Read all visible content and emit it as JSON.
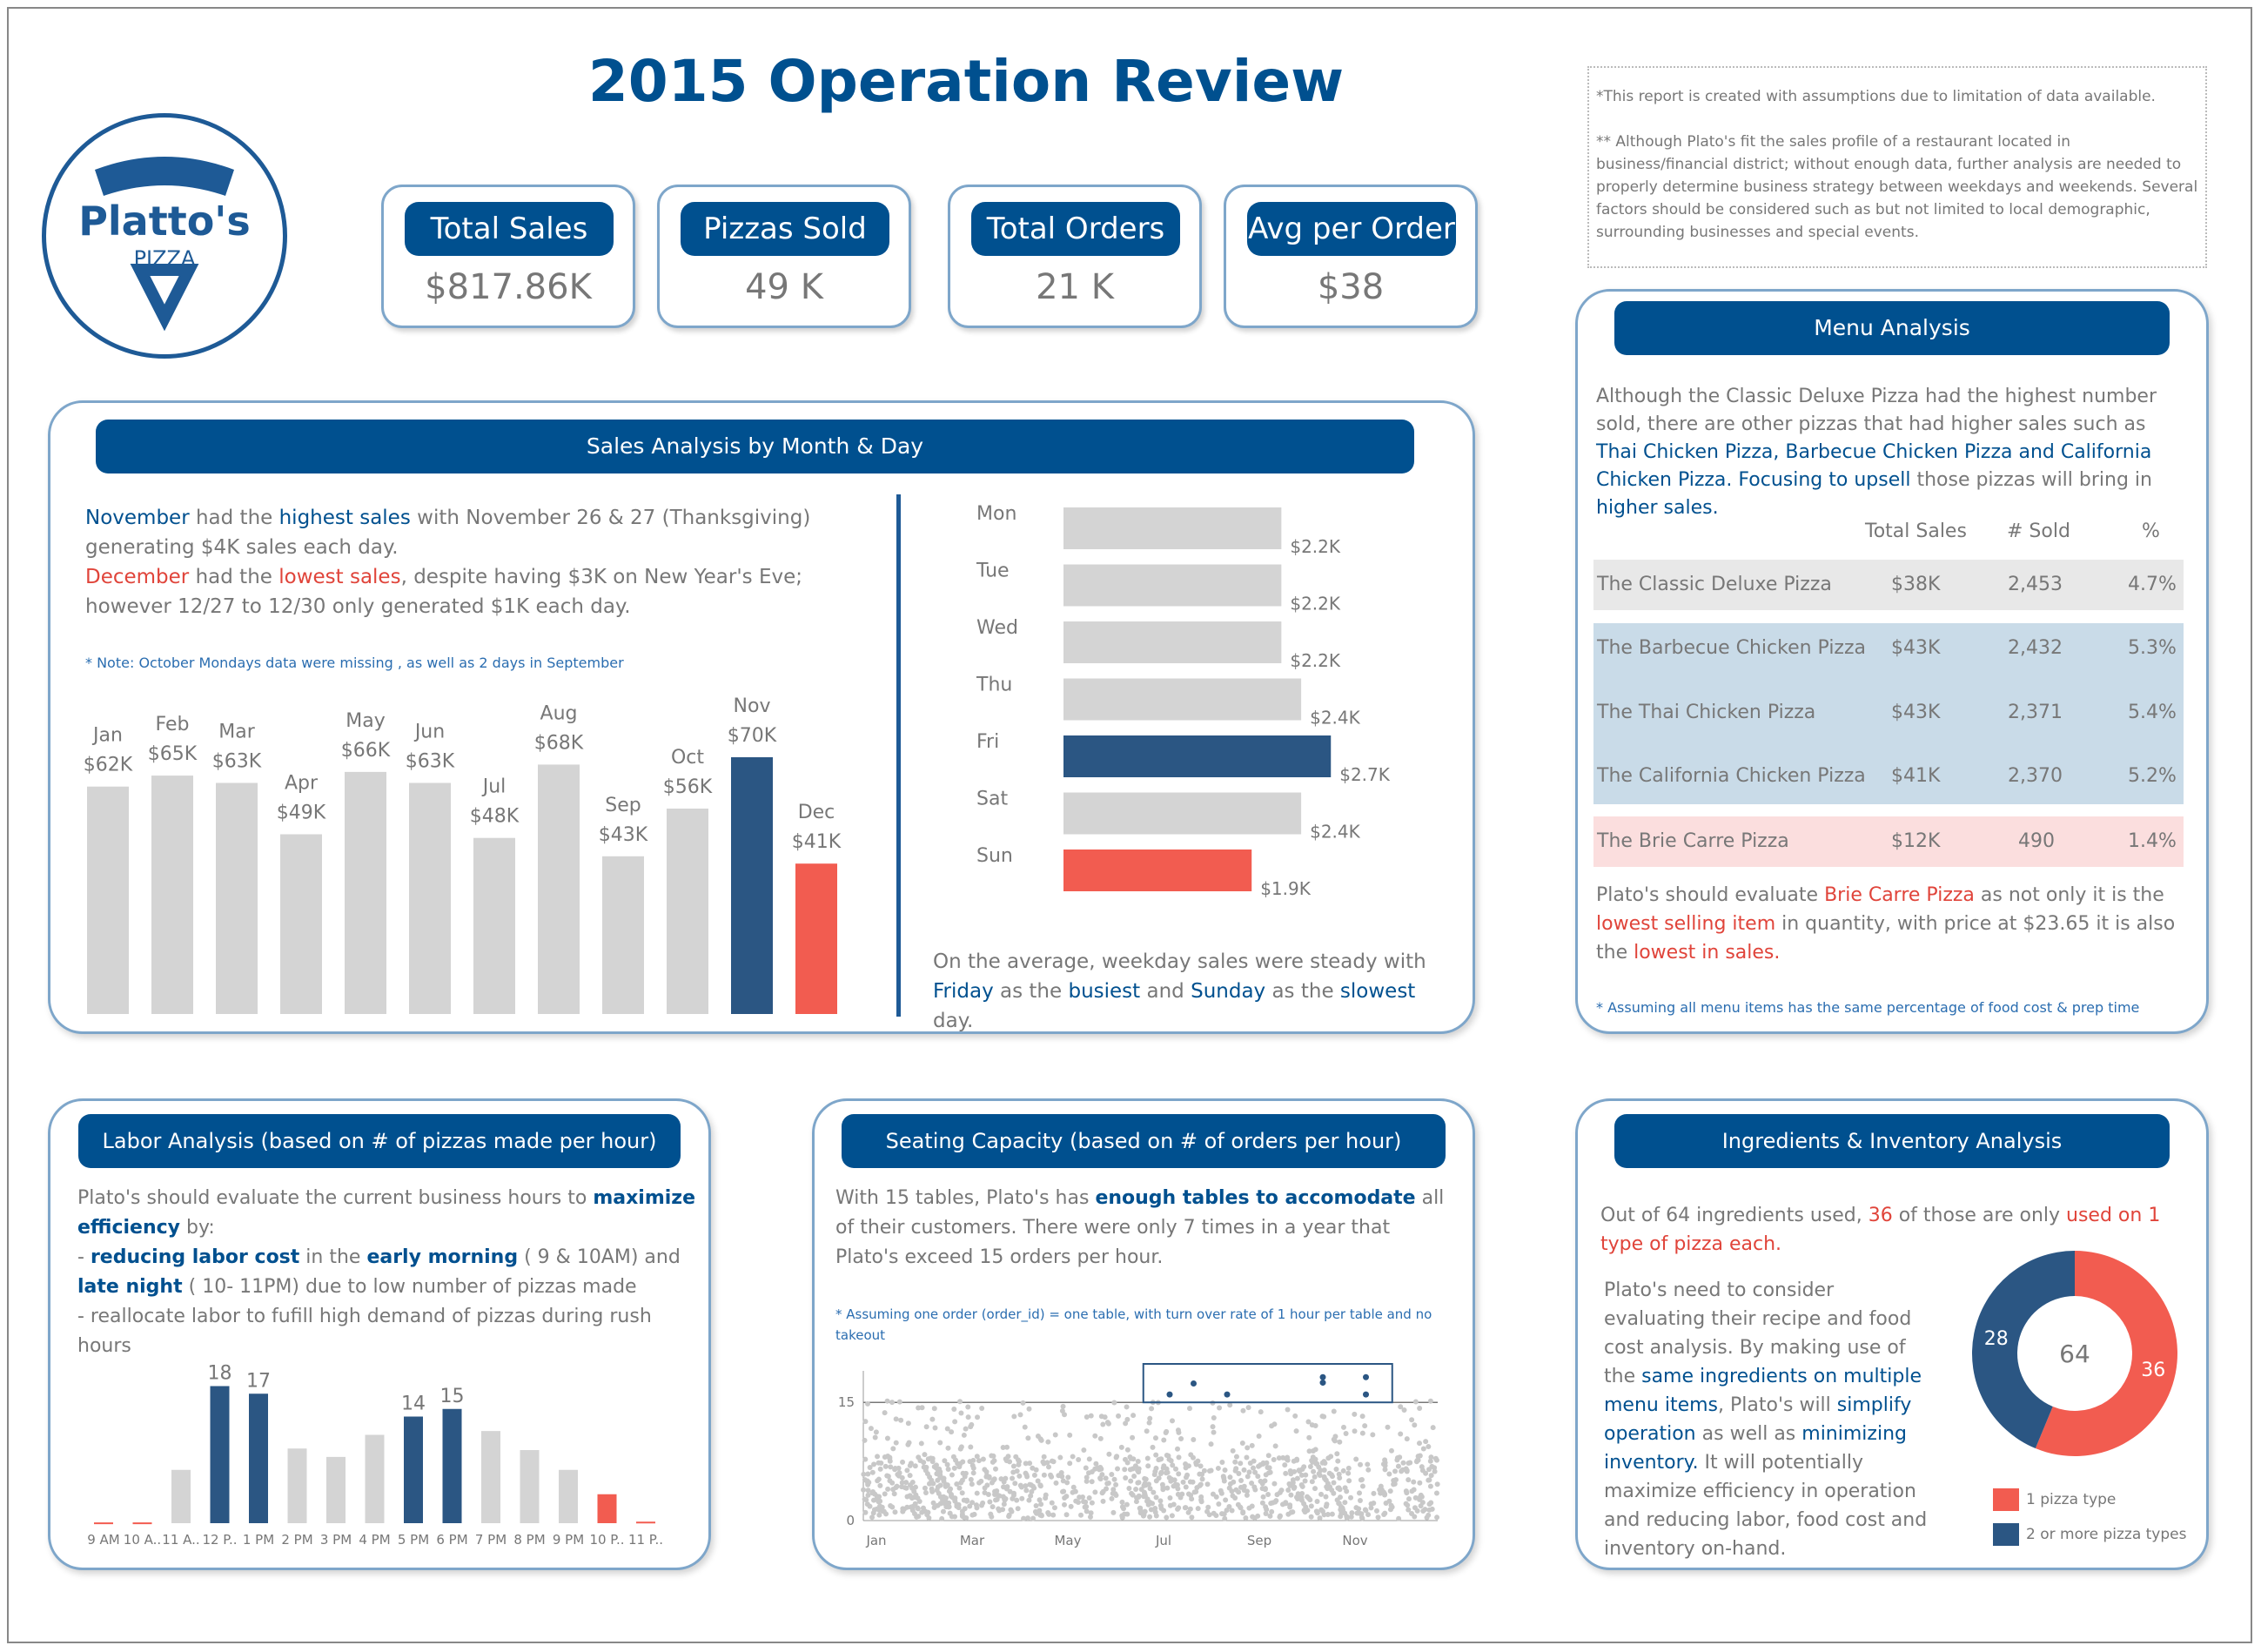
{
  "title": "2015 Operation Review",
  "logo": {
    "line1": "Platto's",
    "line2": "PIZZA"
  },
  "kpis": [
    {
      "label": "Total Sales",
      "value": "$817.86K"
    },
    {
      "label": "Pizzas Sold",
      "value": "49 K"
    },
    {
      "label": "Total Orders",
      "value": "21 K"
    },
    {
      "label": "Avg per Order",
      "value": "$38"
    }
  ],
  "disclaimer": {
    "line1": "*This report is created with assumptions due to limitation of data available.",
    "line2": "** Although Plato's fit the sales profile of a restaurant located in business/financial district; without enough data, further analysis are needed to properly determine business strategy between weekdays and weekends. Several factors should be considered such as but not limited to local demographic, surrounding businesses and special events."
  },
  "sales": {
    "header": "Sales Analysis by Month & Day",
    "p1_a": "November",
    "p1_b": " had the ",
    "p1_c": "highest sales",
    "p1_d": " with November 26 & 27 (Thanksgiving) generating $4K sales each day.",
    "p2_a": "December",
    "p2_b": " had the ",
    "p2_c": "lowest sales",
    "p2_d": ", despite having $3K on  New Year's Eve; however 12/27 to 12/30 only generated $1K  each day.",
    "note": "* Note: October Mondays data were missing , as well as 2 days in September",
    "weekday_a": "On the average, weekday sales were steady with ",
    "weekday_b": "Friday",
    "weekday_c": " as the ",
    "weekday_d": "busiest",
    "weekday_e": " and ",
    "weekday_f": "Sunday",
    "weekday_g": " as the ",
    "weekday_h": "slowest",
    "weekday_i": " day."
  },
  "menu": {
    "header": "Menu Analysis",
    "intro_a": "Although the Classic Deluxe Pizza had the highest number sold, there are other pizzas that had higher sales such as ",
    "intro_b": "Thai Chicken Pizza, Barbecue Chicken Pizza and California Chicken Pizza.",
    "intro_c": " Focusing to upsell",
    "intro_d": " those pizzas will bring in ",
    "intro_e": "higher sales.",
    "col_sales": "Total Sales",
    "col_sold": "# Sold",
    "col_pct": "%",
    "rows": [
      {
        "name": "The Classic Deluxe Pizza",
        "sales": "$38K",
        "sold": "2,453",
        "pct": "4.7%"
      },
      {
        "name": "The Barbecue Chicken Pizza",
        "sales": "$43K",
        "sold": "2,432",
        "pct": "5.3%"
      },
      {
        "name": "The Thai Chicken Pizza",
        "sales": "$43K",
        "sold": "2,371",
        "pct": "5.4%"
      },
      {
        "name": "The California Chicken Pizza",
        "sales": "$41K",
        "sold": "2,370",
        "pct": "5.2%"
      },
      {
        "name": "The Brie Carre Pizza",
        "sales": "$12K",
        "sold": "490",
        "pct": "1.4%"
      }
    ],
    "eval_a": "Plato's should evaluate ",
    "eval_b": "Brie Carre Pizza",
    "eval_c": " as not only it is the ",
    "eval_d": "lowest selling item",
    "eval_e": " in quantity, with price at $23.65 it is also the ",
    "eval_f": "lowest in sales.",
    "note": "* Assuming all menu items has the same percentage of food cost & prep time"
  },
  "labor": {
    "header": "Labor Analysis (based on # of pizzas made per hour)",
    "p_a": "Plato's should evaluate the current business  hours to ",
    "p_b": "maximize efficiency",
    "p_c": " by:",
    "b1_a": "- ",
    "b1_b": "reducing labor cost",
    "b1_c": " in the ",
    "b1_d": "early morning",
    "b1_e": " ( 9 & 10AM) and ",
    "b1_f": "late night",
    "b1_g": " ( 10- 11PM)   due to low number of pizzas made",
    "b2": "- reallocate labor to fufill high demand of pizzas during rush hours"
  },
  "seating": {
    "header": "Seating Capacity (based on # of orders per hour)",
    "p_a": "With 15 tables, Plato's has ",
    "p_b": "enough tables to accomodate",
    "p_c": " all of their customers.  There were only 7 times in a year that Plato's exceed 15 orders per hour.",
    "note": "* Assuming one order (order_id) = one table, with turn over rate of 1 hour per table and no takeout"
  },
  "ingredients": {
    "header": "Ingredients & Inventory Analysis",
    "p1_a": "Out of 64 ingredients used, ",
    "p1_b": "36",
    "p1_c": " of those are only ",
    "p1_d": "used on 1 type of pizza each.",
    "p2_a": "Plato's need to consider evaluating their recipe and food cost analysis. By making use of the ",
    "p2_b": "same ingredients on multiple menu items",
    "p2_c": ", Plato's will ",
    "p2_d": "simplify operation",
    "p2_e": " as well as ",
    "p2_f": "minimizing inventory.",
    "p2_g": " It will potentially maximize efficiency in operation and reducing labor, food cost  and inventory on-hand."
  },
  "colors": {
    "brand_blue": "#00508f",
    "highlight_blue": "#2b5683",
    "highlight_red": "#f25c50",
    "neutral_bar": "#d4d4d4"
  },
  "chart_data": [
    {
      "type": "bar",
      "name": "monthly-sales",
      "categories": [
        "Jan",
        "Feb",
        "Mar",
        "Apr",
        "May",
        "Jun",
        "Jul",
        "Aug",
        "Sep",
        "Oct",
        "Nov",
        "Dec"
      ],
      "values": [
        62,
        65,
        63,
        49,
        66,
        63,
        48,
        68,
        43,
        56,
        70,
        41
      ],
      "value_labels": [
        "$62K",
        "$65K",
        "$63K",
        "$49K",
        "$66K",
        "$63K",
        "$48K",
        "$68K",
        "$43K",
        "$56K",
        "$70K",
        "$41K"
      ],
      "highlight": {
        "Nov": "#2b5683",
        "Dec": "#f25c50"
      },
      "ylim": [
        0,
        75
      ]
    },
    {
      "type": "bar",
      "name": "weekday-avg-sales",
      "orientation": "horizontal",
      "categories": [
        "Mon",
        "Tue",
        "Wed",
        "Thu",
        "Fri",
        "Sat",
        "Sun"
      ],
      "values": [
        2.2,
        2.2,
        2.2,
        2.4,
        2.7,
        2.4,
        1.9
      ],
      "value_labels": [
        "$2.2K",
        "$2.2K",
        "$2.2K",
        "$2.4K",
        "$2.7K",
        "$2.4K",
        "$1.9K"
      ],
      "highlight": {
        "Fri": "#2b5683",
        "Sun": "#f25c50"
      },
      "xlim": [
        0,
        2.9
      ]
    },
    {
      "type": "bar",
      "name": "pizzas-per-hour",
      "categories": [
        "9 AM",
        "10 A..",
        "11 A..",
        "12 P..",
        "1 PM",
        "2 PM",
        "3 PM",
        "4 PM",
        "5 PM",
        "6 PM",
        "7 PM",
        "8 PM",
        "9 PM",
        "10 P..",
        "11 P.."
      ],
      "values": [
        0.1,
        0.1,
        7,
        18,
        17,
        9.8,
        8.7,
        11.6,
        14,
        15,
        12.1,
        9.6,
        7,
        3.8,
        0.2
      ],
      "value_labels": [
        "",
        "",
        "",
        "18",
        "17",
        "",
        "",
        "",
        "14",
        "15",
        "",
        "",
        "",
        "",
        ""
      ],
      "highlight": {
        "12 P..": "#2b5683",
        "1 PM": "#2b5683",
        "5 PM": "#2b5683",
        "6 PM": "#2b5683",
        "9 AM": "#f25c50",
        "10 A..": "#f25c50",
        "10 P..": "#f25c50",
        "11 P..": "#f25c50"
      },
      "ylim": [
        0,
        20
      ]
    },
    {
      "type": "scatter",
      "name": "orders-per-hour",
      "x_ticks": [
        "Jan",
        "Mar",
        "May",
        "Jul",
        "Sep",
        "Nov"
      ],
      "y_ticks": [
        0,
        15
      ],
      "reference_line": 15,
      "ylim": [
        0,
        19
      ],
      "outliers": [
        {
          "month": 6.4,
          "y": 16
        },
        {
          "month": 6.9,
          "y": 17.4
        },
        {
          "month": 7.6,
          "y": 16
        },
        {
          "month": 9.6,
          "y": 17.5
        },
        {
          "month": 9.6,
          "y": 18.2
        },
        {
          "month": 10.5,
          "y": 16
        },
        {
          "month": 10.5,
          "y": 18.2
        }
      ]
    },
    {
      "type": "pie",
      "name": "ingredient-usage",
      "center_label": "64",
      "slices": [
        {
          "label": "1 pizza type",
          "value": 36,
          "color": "#f25c50"
        },
        {
          "label": "2 or more pizza types",
          "value": 28,
          "color": "#2b5683"
        }
      ]
    }
  ]
}
